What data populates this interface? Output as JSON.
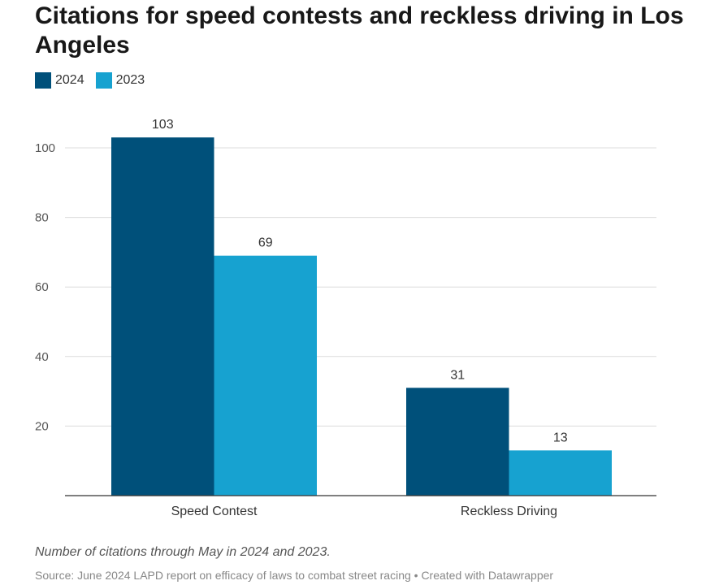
{
  "chart_data": {
    "type": "bar",
    "title": "Citations for speed contests and reckless driving in Los Angeles",
    "categories": [
      "Speed Contest",
      "Reckless Driving"
    ],
    "series": [
      {
        "name": "2024",
        "values": [
          103,
          31
        ],
        "color": "#00507a"
      },
      {
        "name": "2023",
        "values": [
          69,
          13
        ],
        "color": "#17a2d0"
      }
    ],
    "y_ticks": [
      20,
      40,
      60,
      80,
      100
    ],
    "ylim": [
      0,
      105
    ],
    "grid": true,
    "legend_position": "top-left",
    "data_labels": true
  },
  "note": "Number of citations through May in 2024 and 2023.",
  "source": "Source: June 2024 LAPD report on efficacy of laws to combat street racing • Created with Datawrapper"
}
